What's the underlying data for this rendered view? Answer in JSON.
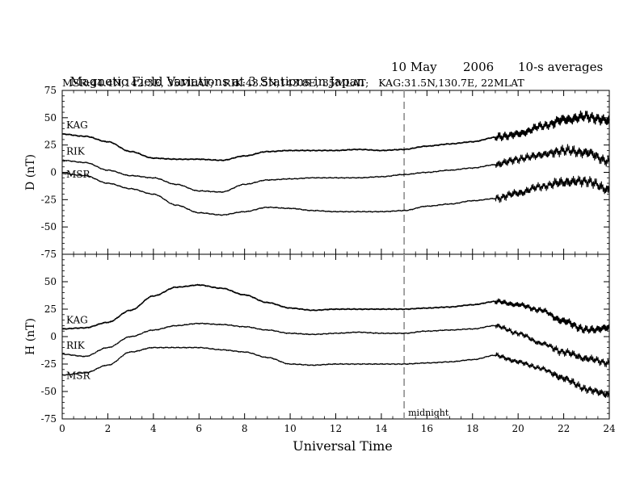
{
  "header": {
    "title": "Magnetic Field Variations at 3 Stations in Japan",
    "date": "10 May",
    "year": "2006",
    "averaging": "10-s averages",
    "stations": "MSR:44.4N,142.3E, 35MLAT;   RIK:43.5N,143.8E, 35MLAT;   KAG:31.5N,130.7E, 22MLAT"
  },
  "chart_data": [
    {
      "type": "line",
      "panel": "D",
      "ylabel": "D (nT)",
      "ylim": [
        -75,
        75
      ],
      "yticks": [
        75,
        50,
        25,
        0,
        -25,
        -50,
        -75
      ],
      "xlim": [
        0,
        24
      ],
      "series": [
        {
          "name": "KAG",
          "x": [
            0,
            1,
            2,
            3,
            4,
            5,
            6,
            7,
            8,
            9,
            10,
            11,
            12,
            13,
            14,
            15,
            16,
            17,
            18,
            19,
            20,
            21,
            22,
            23,
            24
          ],
          "y": [
            35,
            33,
            28,
            19,
            13,
            12,
            12,
            11,
            15,
            19,
            20,
            20,
            20,
            21,
            20,
            21,
            24,
            26,
            28,
            32,
            35,
            42,
            48,
            51,
            47
          ]
        },
        {
          "name": "RIK",
          "x": [
            0,
            1,
            2,
            3,
            4,
            5,
            6,
            7,
            8,
            9,
            10,
            11,
            12,
            13,
            14,
            15,
            16,
            17,
            18,
            19,
            20,
            21,
            22,
            23,
            24
          ],
          "y": [
            11,
            9,
            2,
            -3,
            -5,
            -11,
            -17,
            -18,
            -11,
            -7,
            -6,
            -5,
            -5,
            -5,
            -4,
            -2,
            0,
            2,
            4,
            7,
            12,
            16,
            20,
            18,
            10
          ]
        },
        {
          "name": "MSR",
          "x": [
            0,
            1,
            2,
            3,
            4,
            5,
            6,
            7,
            8,
            9,
            10,
            11,
            12,
            13,
            14,
            15,
            16,
            17,
            18,
            19,
            20,
            21,
            22,
            23,
            24
          ],
          "y": [
            -1,
            -3,
            -10,
            -15,
            -20,
            -30,
            -37,
            -39,
            -36,
            -32,
            -33,
            -35,
            -36,
            -36,
            -36,
            -35,
            -31,
            -29,
            -26,
            -24,
            -19,
            -13,
            -9,
            -8,
            -16
          ]
        }
      ]
    },
    {
      "type": "line",
      "panel": "H",
      "ylabel": "H (nT)",
      "ylim": [
        -75,
        75
      ],
      "yticks": [
        50,
        25,
        0,
        -25,
        -50,
        -75
      ],
      "xlim": [
        0,
        24
      ],
      "xticks": [
        0,
        2,
        4,
        6,
        8,
        10,
        12,
        14,
        16,
        18,
        20,
        22,
        24
      ],
      "xlabel": "Universal Time",
      "annotation": {
        "text": "midnight",
        "x": 15
      },
      "series": [
        {
          "name": "KAG",
          "x": [
            0,
            1,
            2,
            3,
            4,
            5,
            6,
            7,
            8,
            9,
            10,
            11,
            12,
            13,
            14,
            15,
            16,
            17,
            18,
            19,
            20,
            21,
            22,
            23,
            24
          ],
          "y": [
            7,
            8,
            13,
            24,
            37,
            45,
            47,
            44,
            38,
            31,
            26,
            24,
            25,
            25,
            25,
            25,
            26,
            27,
            29,
            32,
            29,
            24,
            14,
            6,
            8
          ]
        },
        {
          "name": "RIK",
          "x": [
            0,
            1,
            2,
            3,
            4,
            5,
            6,
            7,
            8,
            9,
            10,
            11,
            12,
            13,
            14,
            15,
            16,
            17,
            18,
            19,
            20,
            21,
            22,
            23,
            24
          ],
          "y": [
            -16,
            -18,
            -10,
            0,
            6,
            10,
            12,
            11,
            9,
            6,
            3,
            2,
            3,
            4,
            3,
            3,
            5,
            6,
            7,
            10,
            3,
            -6,
            -14,
            -20,
            -24
          ]
        },
        {
          "name": "MSR",
          "x": [
            0,
            1,
            2,
            3,
            4,
            5,
            6,
            7,
            8,
            9,
            10,
            11,
            12,
            13,
            14,
            15,
            16,
            17,
            18,
            19,
            20,
            21,
            22,
            23,
            24
          ],
          "y": [
            -35,
            -33,
            -26,
            -14,
            -10,
            -10,
            -10,
            -12,
            -14,
            -19,
            -25,
            -26,
            -25,
            -25,
            -25,
            -25,
            -24,
            -23,
            -21,
            -17,
            -23,
            -29,
            -38,
            -48,
            -53
          ]
        }
      ]
    }
  ]
}
